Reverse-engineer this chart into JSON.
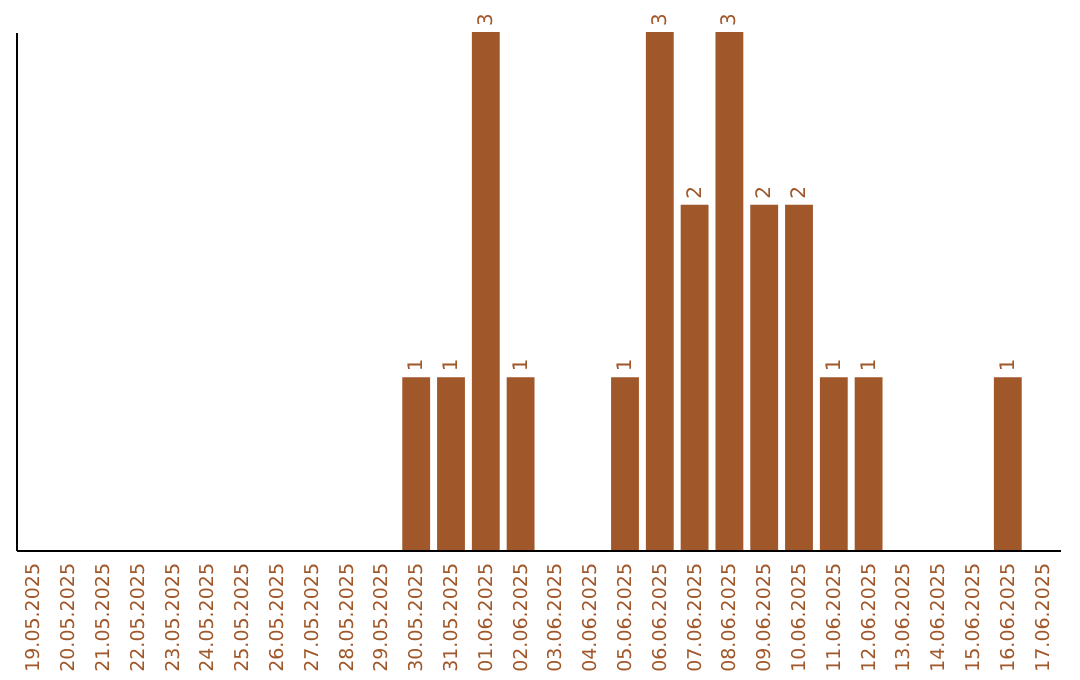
{
  "chart_data": {
    "type": "bar",
    "categories": [
      "19.05.2025",
      "20.05.2025",
      "21.05.2025",
      "22.05.2025",
      "23.05.2025",
      "24.05.2025",
      "25.05.2025",
      "26.05.2025",
      "27.05.2025",
      "28.05.2025",
      "29.05.2025",
      "30.05.2025",
      "31.05.2025",
      "01.06.2025",
      "02.06.2025",
      "03.06.2025",
      "04.06.2025",
      "05.06.2025",
      "06.06.2025",
      "07.06.2025",
      "08.06.2025",
      "09.06.2025",
      "10.06.2025",
      "11.06.2025",
      "12.06.2025",
      "13.06.2025",
      "14.06.2025",
      "15.06.2025",
      "16.06.2025",
      "17.06.2025"
    ],
    "series": [
      {
        "color": "#a0572a",
        "values": [
          0,
          0,
          0,
          0,
          0,
          0,
          0,
          0,
          0,
          0,
          0,
          1,
          1,
          3,
          1,
          0,
          0,
          1,
          3,
          2,
          3,
          2,
          2,
          1,
          1,
          0,
          0,
          0,
          1,
          0
        ],
        "value_labels": [
          null,
          null,
          null,
          null,
          null,
          null,
          null,
          null,
          null,
          null,
          null,
          "1",
          "1",
          "3",
          "1",
          null,
          null,
          "1",
          "3",
          "2",
          "3",
          "2",
          "2",
          "1",
          "1",
          null,
          null,
          null,
          "1",
          null
        ]
      }
    ],
    "tick_labels": "x",
    "grid": false
  }
}
